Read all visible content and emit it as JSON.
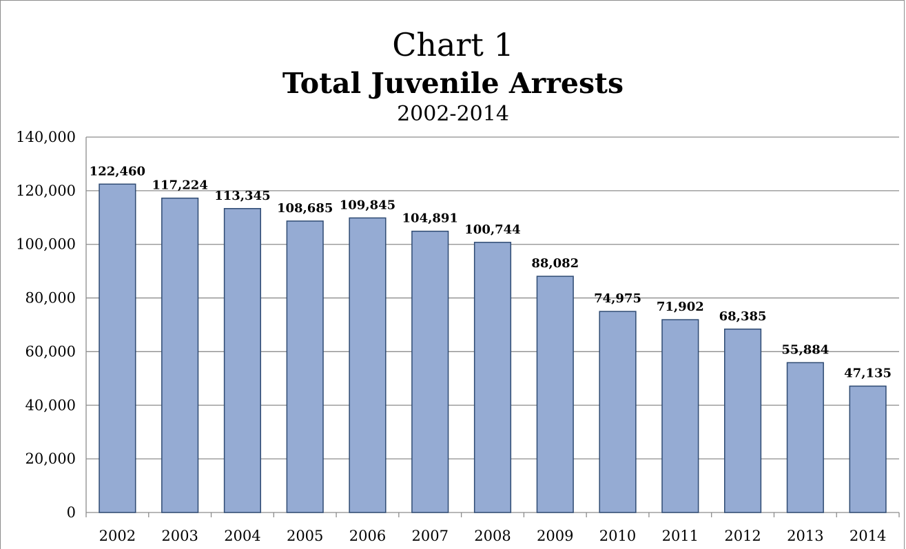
{
  "chart_data": {
    "type": "bar",
    "title_number": "Chart 1",
    "title": "Total Juvenile Arrests",
    "subtitle": "2002-2014",
    "xlabel": "",
    "ylabel": "",
    "categories": [
      "2002",
      "2003",
      "2004",
      "2005",
      "2006",
      "2007",
      "2008",
      "2009",
      "2010",
      "2011",
      "2012",
      "2013",
      "2014"
    ],
    "values": [
      122460,
      117224,
      113345,
      108685,
      109845,
      104891,
      100744,
      88082,
      74975,
      71902,
      68385,
      55884,
      47135
    ],
    "data_labels": [
      "122,460",
      "117,224",
      "113,345",
      "108,685",
      "109,845",
      "104,891",
      "100,744",
      "88,082",
      "74,975",
      "71,902",
      "68,385",
      "55,884",
      "47,135"
    ],
    "ylim": [
      0,
      140000
    ],
    "yticks": [
      0,
      20000,
      40000,
      60000,
      80000,
      100000,
      120000,
      140000
    ],
    "ytick_labels": [
      "0",
      "20,000",
      "40,000",
      "60,000",
      "80,000",
      "100,000",
      "120,000",
      "140,000"
    ],
    "grid": true,
    "legend": "none",
    "colors": {
      "bar_fill": "#95abd3",
      "bar_stroke": "#2e4a72",
      "grid": "#8c8c8c"
    }
  }
}
